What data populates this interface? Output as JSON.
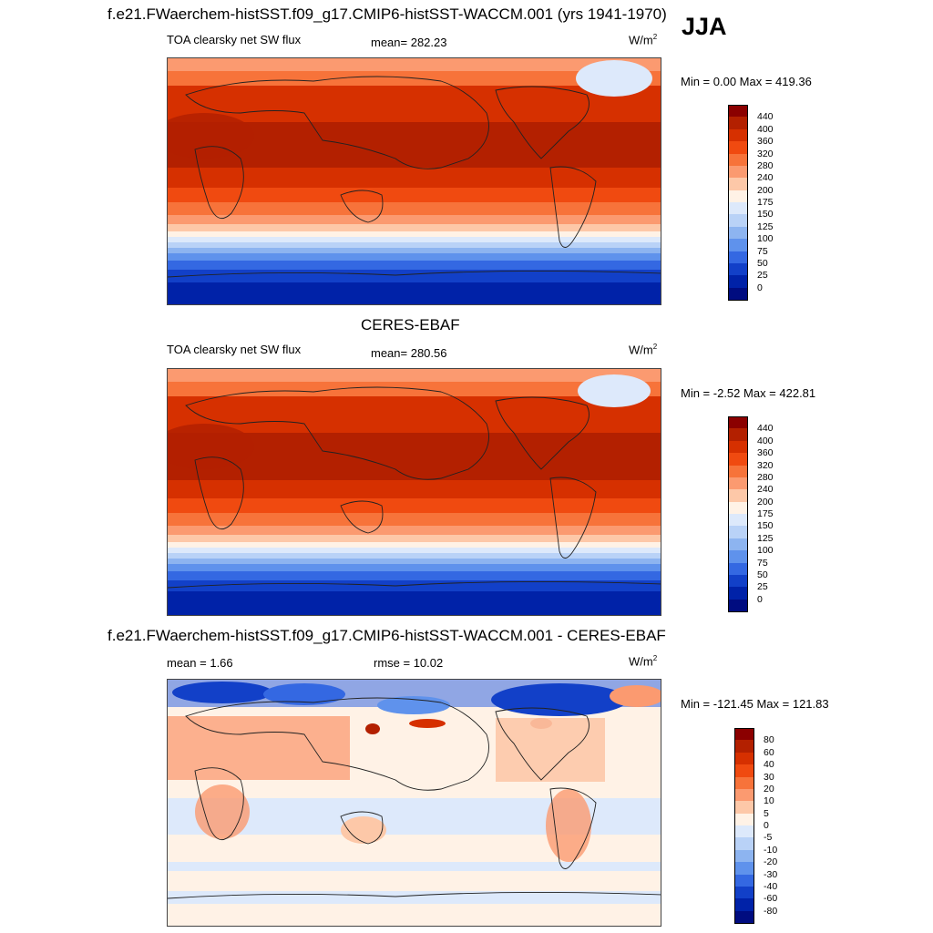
{
  "season": "JJA",
  "panels": [
    {
      "title": "f.e21.FWaerchem-histSST.f09_g17.CMIP6-histSST-WACCM.001 (yrs 1941-1970)",
      "left_label": "TOA clearsky net SW flux",
      "center_label": "mean= 282.23",
      "units": "W/m",
      "units_sup": "2",
      "minmax": "Min =   0.00 Max = 419.36",
      "colorbar": {
        "labels": [
          "440",
          "400",
          "360",
          "320",
          "280",
          "240",
          "200",
          "175",
          "150",
          "125",
          "100",
          "75",
          "50",
          "25",
          "0"
        ],
        "colors": [
          "#8b0000",
          "#b32000",
          "#d63000",
          "#f04a10",
          "#f7733a",
          "#fb9a70",
          "#fdc8a8",
          "#fff2e6",
          "#dde9fb",
          "#b9d2f7",
          "#8db4f0",
          "#5f92ec",
          "#3468e2",
          "#1240c8",
          "#0022a8",
          "#000c80"
        ]
      }
    },
    {
      "title": "CERES-EBAF",
      "left_label": "TOA clearsky net SW flux",
      "center_label": "mean= 280.56",
      "units": "W/m",
      "units_sup": "2",
      "minmax": "Min =  -2.52 Max = 422.81",
      "colorbar": {
        "labels": [
          "440",
          "400",
          "360",
          "320",
          "280",
          "240",
          "200",
          "175",
          "150",
          "125",
          "100",
          "75",
          "50",
          "25",
          "0"
        ],
        "colors": [
          "#8b0000",
          "#b32000",
          "#d63000",
          "#f04a10",
          "#f7733a",
          "#fb9a70",
          "#fdc8a8",
          "#fff2e6",
          "#dde9fb",
          "#b9d2f7",
          "#8db4f0",
          "#5f92ec",
          "#3468e2",
          "#1240c8",
          "#0022a8",
          "#000c80"
        ]
      }
    },
    {
      "title": "f.e21.FWaerchem-histSST.f09_g17.CMIP6-histSST-WACCM.001 - CERES-EBAF",
      "left_label": "mean =   1.66",
      "center_label": "rmse =  10.02",
      "units": "W/m",
      "units_sup": "2",
      "minmax": "Min = -121.45 Max = 121.83",
      "colorbar": {
        "labels": [
          "80",
          "60",
          "40",
          "30",
          "20",
          "10",
          "5",
          "0",
          "-5",
          "-10",
          "-20",
          "-30",
          "-40",
          "-60",
          "-80"
        ],
        "colors": [
          "#8b0000",
          "#b32000",
          "#d63000",
          "#f04a10",
          "#f7733a",
          "#fb9a70",
          "#fdc8a8",
          "#fff2e6",
          "#dde9fb",
          "#b9d2f7",
          "#8db4f0",
          "#5f92ec",
          "#3468e2",
          "#1240c8",
          "#0022a8",
          "#000c80"
        ]
      }
    }
  ]
}
